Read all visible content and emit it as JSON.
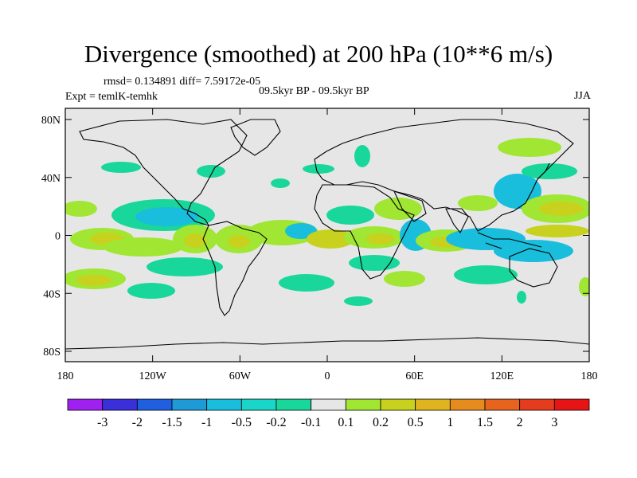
{
  "title": "Divergence (smoothed) at 200 hPa (10**6 m/s)",
  "stats": "rmsd= 0.134891 diff= 7.59172e-05",
  "expt": "Expt = temlK-temhk",
  "period": "09.5kyr BP - 09.5kyr BP",
  "season": "JJA",
  "map": {
    "background_color": "#e6e6e6",
    "lon_ticks": [
      "180",
      "120W",
      "60W",
      "0",
      "60E",
      "120E",
      "180"
    ],
    "lat_ticks": [
      "80N",
      "40N",
      "0",
      "40S",
      "80S"
    ]
  },
  "colorbar": {
    "labels": [
      "-3",
      "-2",
      "-1.5",
      "-1",
      "-0.5",
      "-0.2",
      "-0.1",
      "0.1",
      "0.2",
      "0.5",
      "1",
      "1.5",
      "2",
      "3"
    ],
    "colors": [
      "#a020f0",
      "#3a2fd9",
      "#1f5fe0",
      "#1e9ad6",
      "#19bedc",
      "#1ad6c8",
      "#19d79a",
      "#e6e6e6",
      "#a0e632",
      "#c8d21e",
      "#e0b41e",
      "#e68c1e",
      "#e6641e",
      "#e63c1e",
      "#e61414"
    ]
  }
}
